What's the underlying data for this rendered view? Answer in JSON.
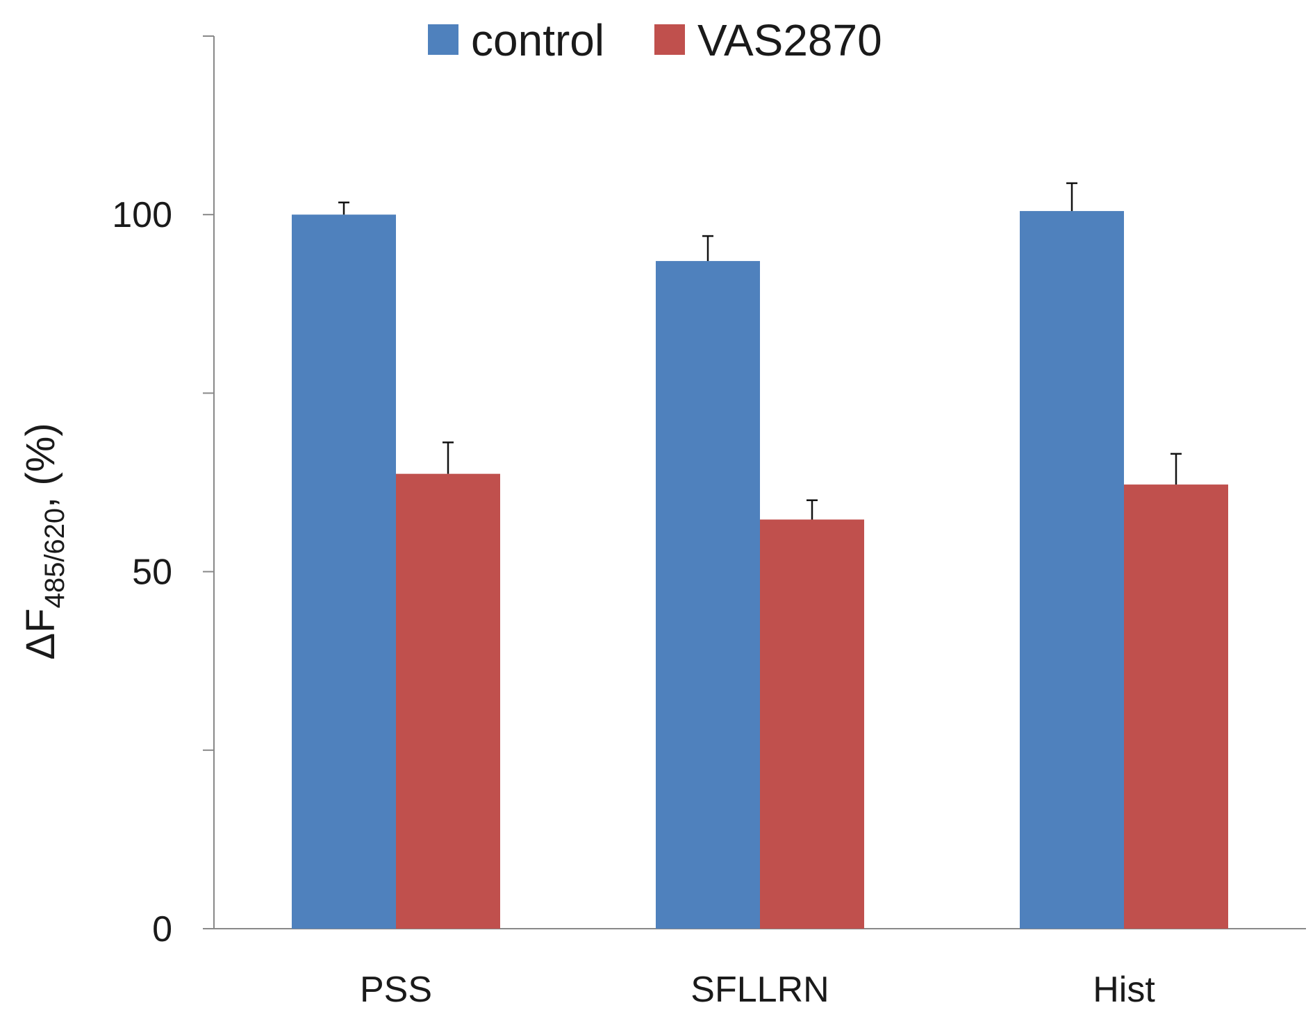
{
  "chart_data": {
    "type": "bar",
    "title": "",
    "xlabel": "",
    "ylabel": "ΔF",
    "ylabel_subscript": "485/620",
    "ylabel_suffix": ", (%)",
    "ylim": [
      0,
      125
    ],
    "yticks": [
      0,
      25,
      50,
      75,
      100,
      125
    ],
    "ytick_labels": [
      "0",
      "",
      "50",
      "",
      "100",
      ""
    ],
    "categories": [
      "PSS",
      "SFLLRN",
      "Hist"
    ],
    "series": [
      {
        "name": "control",
        "color": "#4f81bd",
        "values": [
          100,
          93.5,
          100.5
        ],
        "errors": [
          1.7,
          3.5,
          3.9
        ]
      },
      {
        "name": "VAS2870",
        "color": "#c0504d",
        "values": [
          63.7,
          57.3,
          62.2
        ],
        "errors": [
          4.4,
          2.7,
          4.3
        ]
      }
    ],
    "legend_position": "top",
    "grid": false
  }
}
